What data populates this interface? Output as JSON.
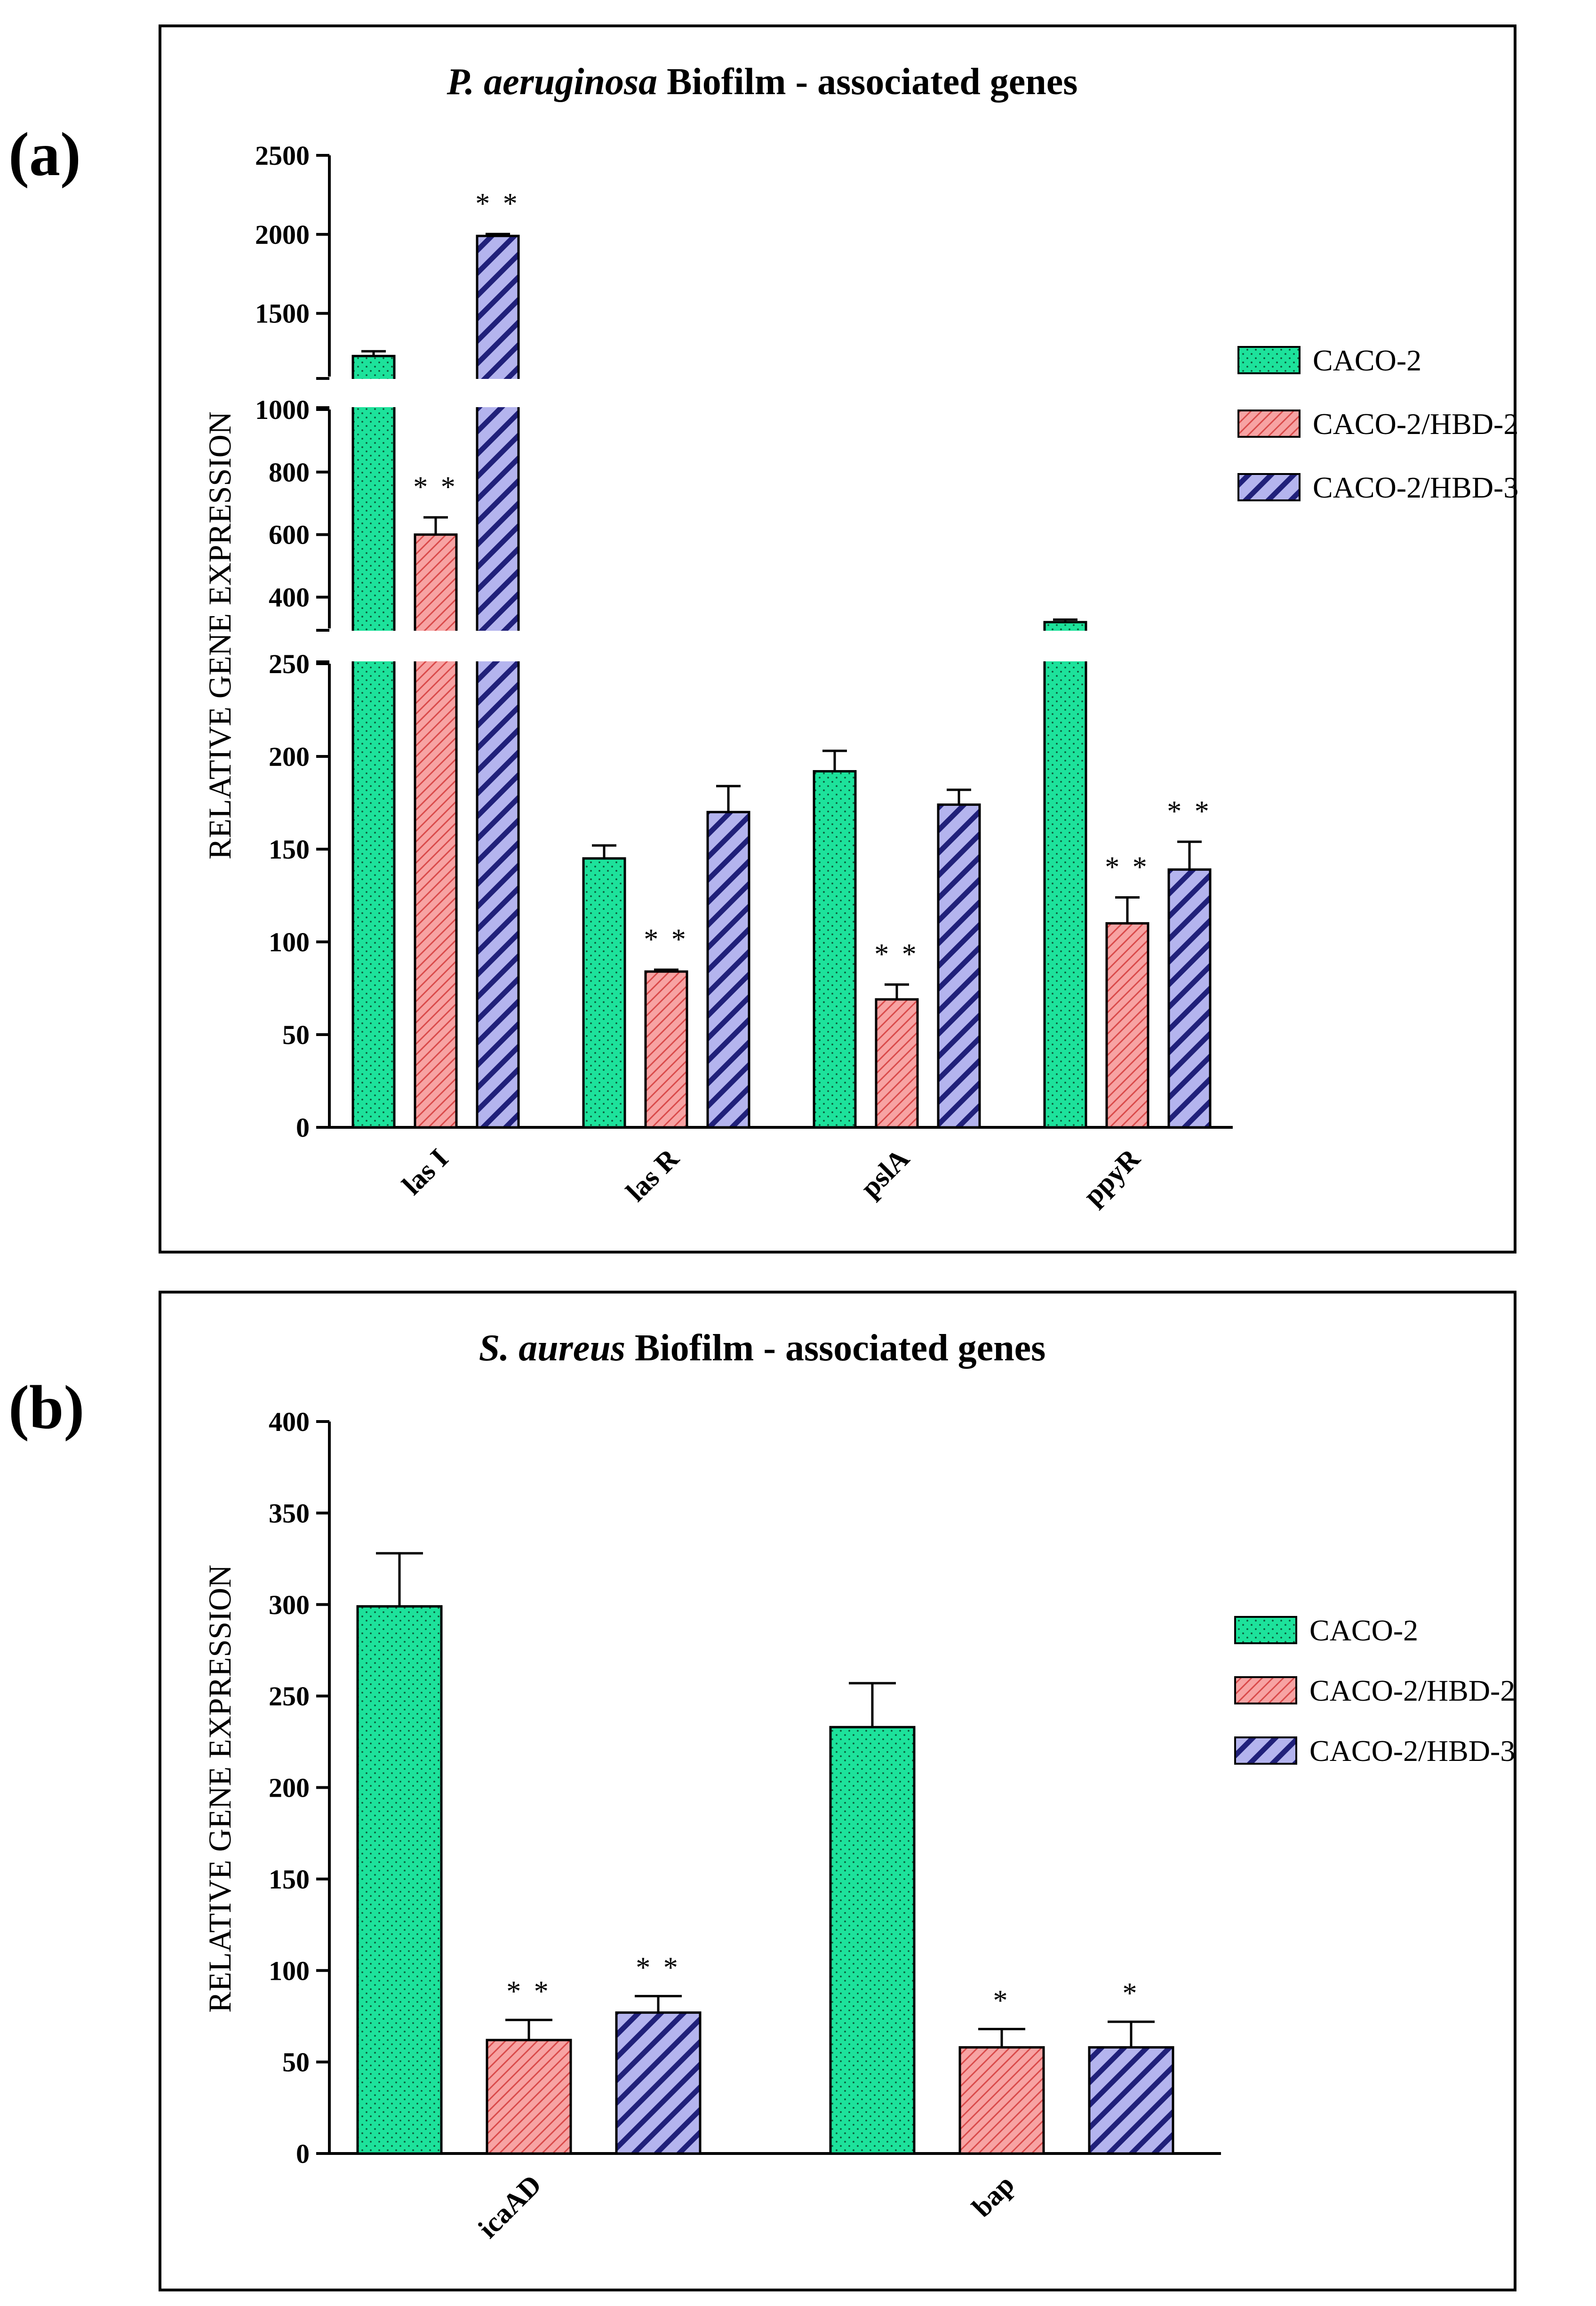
{
  "colors": {
    "caco2": "#1de29b",
    "hbd2": "#f7a3a3",
    "hbd3": "#b4b4ee",
    "hbd2_hatch": "#d94a4a",
    "hbd3_hatch": "#20207a",
    "caco2_dot": "#0d5a3a"
  },
  "chart_data": [
    {
      "panel_label": "(a)",
      "type": "bar",
      "title": "P. aeruginosa Biofilm - associated genes",
      "title_italic": "P. aeruginosa",
      "title_rest": " Biofilm - associated genes",
      "ylabel": "RELATIVE GENE EXPRESSION",
      "xlabel": "",
      "broken_axis": true,
      "axis_segments": [
        {
          "range": [
            0,
            250
          ],
          "ticks": [
            0,
            50,
            100,
            150,
            200,
            250
          ]
        },
        {
          "range": [
            300,
            1000
          ],
          "ticks": [
            400,
            600,
            800,
            1000
          ]
        },
        {
          "range": [
            1100,
            2500
          ],
          "ticks": [
            1500,
            2000,
            2500
          ]
        }
      ],
      "categories": [
        "las I",
        "las R",
        "pslA",
        "ppyR"
      ],
      "series": [
        {
          "name": "CACO-2",
          "values": [
            1230,
            145,
            192,
            320
          ],
          "errors": [
            30,
            7,
            11,
            8
          ],
          "sig": [
            "",
            "",
            "",
            ""
          ]
        },
        {
          "name": "CACO-2/HBD-2",
          "values": [
            600,
            84,
            69,
            110
          ],
          "errors": [
            55,
            1,
            8,
            14
          ],
          "sig": [
            "* *",
            "* *",
            "* *",
            "* *"
          ]
        },
        {
          "name": "CACO-2/HBD-3",
          "values": [
            1990,
            170,
            174,
            139
          ],
          "errors": [
            12,
            14,
            8,
            15
          ],
          "sig": [
            "* *",
            "",
            "",
            "* *"
          ]
        }
      ],
      "legend_position": "right"
    },
    {
      "panel_label": "(b)",
      "type": "bar",
      "title": "S. aureus Biofilm - associated genes",
      "title_italic": "S. aureus",
      "title_rest": " Biofilm - associated genes",
      "ylabel": "RELATIVE GENE EXPRESSION",
      "xlabel": "",
      "ylim": [
        0,
        400
      ],
      "ticks": [
        0,
        50,
        100,
        150,
        200,
        250,
        300,
        350,
        400
      ],
      "categories": [
        "icaAD",
        "bap"
      ],
      "series": [
        {
          "name": "CACO-2",
          "values": [
            299,
            233
          ],
          "errors": [
            29,
            24
          ],
          "sig": [
            "",
            ""
          ]
        },
        {
          "name": "CACO-2/HBD-2",
          "values": [
            62,
            58
          ],
          "errors": [
            11,
            10
          ],
          "sig": [
            "* *",
            "*"
          ]
        },
        {
          "name": "CACO-2/HBD-3",
          "values": [
            77,
            58
          ],
          "errors": [
            9,
            14
          ],
          "sig": [
            "* *",
            "*"
          ]
        }
      ],
      "legend_position": "right"
    }
  ]
}
